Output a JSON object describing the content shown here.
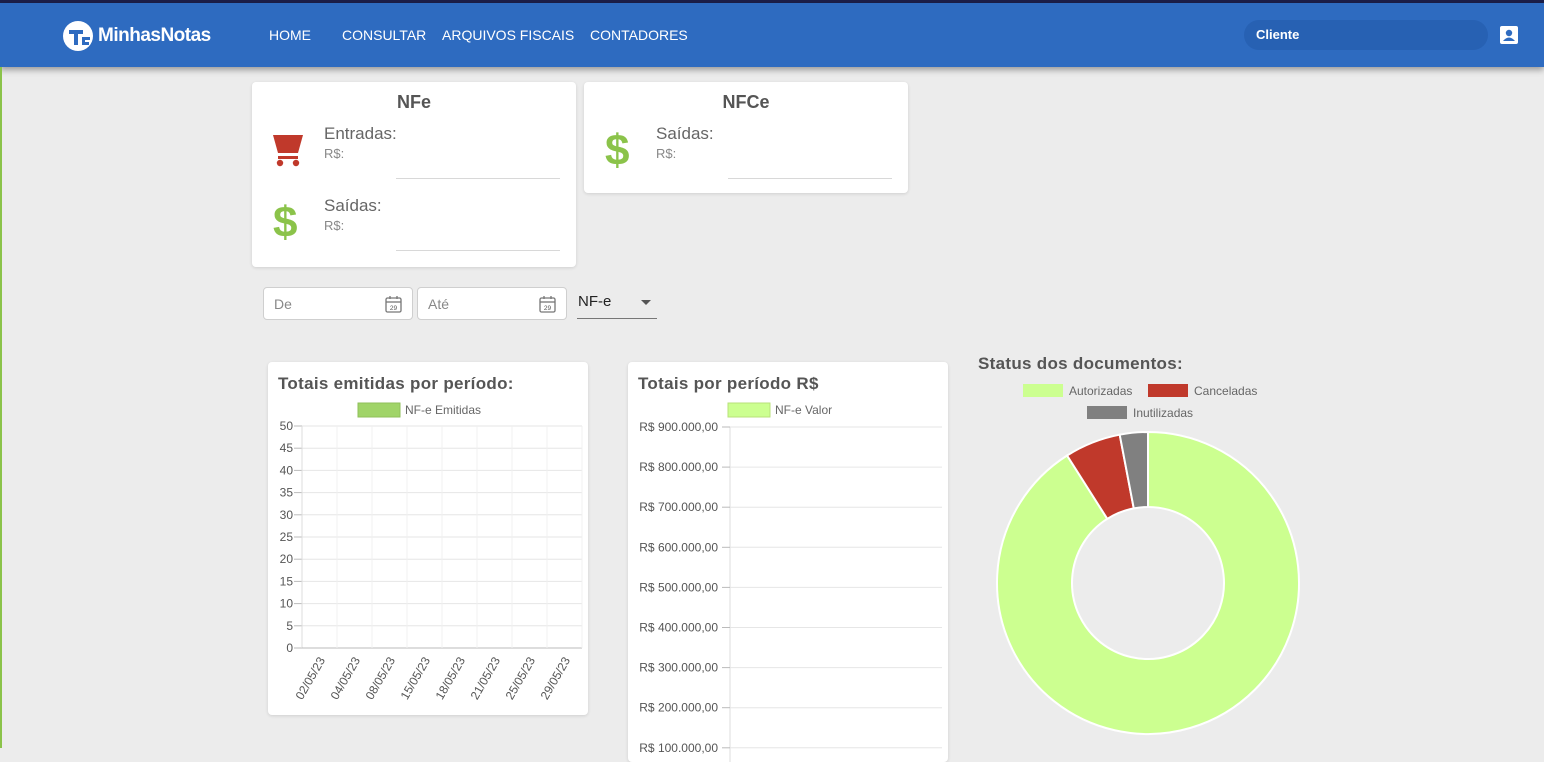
{
  "app": {
    "logo_text": "MinhasNotas"
  },
  "nav": {
    "items": [
      "HOME",
      "CONSULTAR",
      "ARQUIVOS FISCAIS",
      "CONTADORES"
    ]
  },
  "client": {
    "label": "Cliente"
  },
  "nfe_card": {
    "title": "NFe",
    "entradas_label": "Entradas:",
    "entradas_sub": "R$:",
    "saidas_label": "Saídas:",
    "saidas_sub": "R$:"
  },
  "nfce_card": {
    "title": "NFCe",
    "saidas_label": "Saídas:",
    "saidas_sub": "R$:"
  },
  "filters": {
    "from_placeholder": "De",
    "to_placeholder": "Até",
    "doc_type": "NF-e",
    "calendar_day": "29"
  },
  "icons": {
    "cart": "shopping-cart-icon",
    "dollar": "dollar-icon",
    "user": "account-box-icon",
    "calendar": "calendar-icon"
  },
  "colors": {
    "navbar": "#2e6bc0",
    "cart": "#c0392b",
    "dollar": "#8bc34a",
    "emitidas": "#a0d468",
    "valor": "#ccff90",
    "autorizadas": "#ccff90",
    "canceladas": "#c0392b",
    "inutilizadas": "#808080"
  },
  "chart_data": [
    {
      "type": "bar",
      "title": "Totais emitidas por período:",
      "categories": [
        "02/05/23",
        "04/05/23",
        "08/05/23",
        "15/05/23",
        "18/05/23",
        "21/05/23",
        "25/05/23",
        "29/05/23"
      ],
      "series": [
        {
          "name": "NF-e Emitidas",
          "values": [
            0,
            0,
            0,
            0,
            0,
            0,
            0,
            0
          ]
        }
      ],
      "ylim": [
        0,
        50
      ],
      "yticks": [
        0,
        5,
        10,
        15,
        20,
        25,
        30,
        35,
        40,
        45,
        50
      ],
      "grid": true,
      "legend": "top"
    },
    {
      "type": "bar",
      "title": "Totais por período R$",
      "series": [
        {
          "name": "NF-e Valor",
          "values": []
        }
      ],
      "yticks": [
        "R$ 100.000,00",
        "R$ 200.000,00",
        "R$ 300.000,00",
        "R$ 400.000,00",
        "R$ 500.000,00",
        "R$ 600.000,00",
        "R$ 700.000,00",
        "R$ 800.000,00",
        "R$ 900.000,00"
      ],
      "grid": true,
      "legend": "top"
    },
    {
      "type": "pie",
      "title": "Status dos documentos:",
      "categories": [
        "Autorizadas",
        "Canceladas",
        "Inutilizadas"
      ],
      "values": [
        91,
        6,
        3
      ],
      "legend": "top"
    }
  ]
}
